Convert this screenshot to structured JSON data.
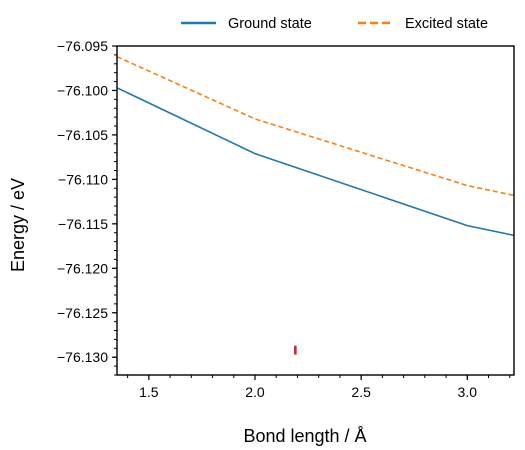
{
  "chart_data": {
    "type": "line",
    "xlabel": "Bond length / Å",
    "ylabel": "Energy / eV",
    "xlim": [
      1.35,
      3.22
    ],
    "ylim": [
      -76.132,
      -76.095
    ],
    "xticks": [
      1.5,
      2.0,
      2.5,
      3.0
    ],
    "xtick_labels": [
      "1.5",
      "2.0",
      "2.5",
      "3.0"
    ],
    "yticks": [
      -76.095,
      -76.1,
      -76.105,
      -76.11,
      -76.115,
      -76.12,
      -76.125,
      -76.13
    ],
    "ytick_labels": [
      "−76.095",
      "−76.100",
      "−76.105",
      "−76.110",
      "−76.115",
      "−76.120",
      "−76.125",
      "−76.130"
    ],
    "grid": false,
    "legend_position": "top, outside the plot",
    "series": [
      {
        "name": "Ground state",
        "color": "#1f77b4",
        "style": "solid",
        "x": [
          1.35,
          2.0,
          3.0,
          3.22
        ],
        "y": [
          -76.0997,
          -76.1071,
          -76.1152,
          -76.1163
        ]
      },
      {
        "name": "Excited state",
        "color": "#ff7f0e",
        "style": "dashed",
        "x": [
          1.35,
          2.0,
          3.0,
          3.22
        ],
        "y": [
          -76.0962,
          -76.1032,
          -76.1107,
          -76.1118
        ]
      }
    ],
    "marker": {
      "color": "#d62728",
      "x": 2.19,
      "y": [
        -76.1297,
        -76.1287
      ]
    }
  }
}
